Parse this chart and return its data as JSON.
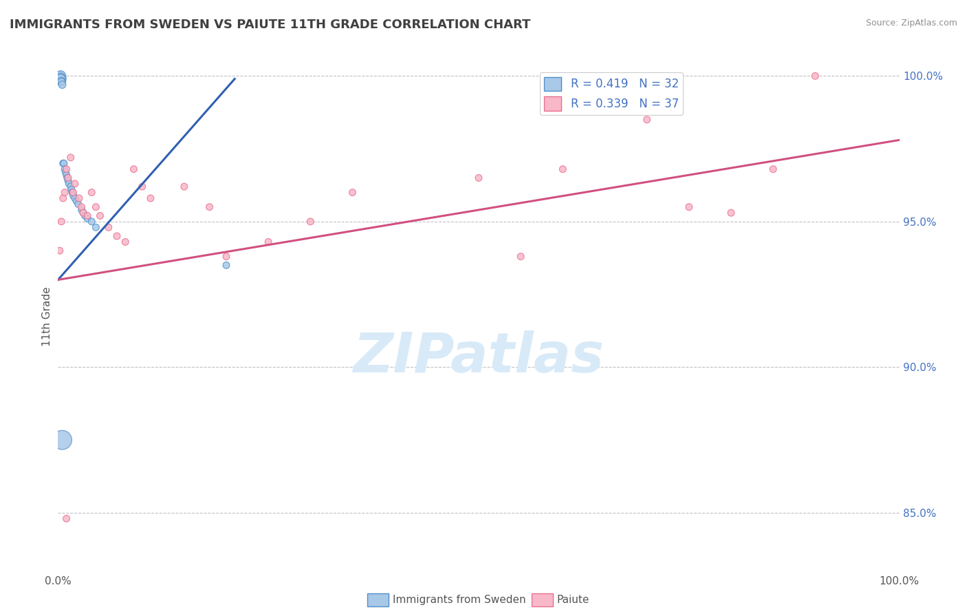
{
  "title": "IMMIGRANTS FROM SWEDEN VS PAIUTE 11TH GRADE CORRELATION CHART",
  "source_text": "Source: ZipAtlas.com",
  "ylabel": "11th Grade",
  "xlim": [
    0.0,
    1.0
  ],
  "ylim": [
    0.83,
    1.005
  ],
  "x_tick_labels": [
    "0.0%",
    "",
    "",
    "",
    "100.0%"
  ],
  "x_tick_vals": [
    0.0,
    0.25,
    0.5,
    0.75,
    1.0
  ],
  "y_tick_labels_right": [
    "85.0%",
    "90.0%",
    "95.0%",
    "100.0%"
  ],
  "y_tick_values_right": [
    0.85,
    0.9,
    0.95,
    1.0
  ],
  "legend_label_blue": "Immigrants from Sweden",
  "legend_label_pink": "Paiute",
  "R_blue": 0.419,
  "N_blue": 32,
  "R_pink": 0.339,
  "N_pink": 37,
  "blue_color": "#a8c8e8",
  "pink_color": "#f8b8c8",
  "blue_edge_color": "#5090c8",
  "pink_edge_color": "#e87090",
  "blue_line_color": "#3060b0",
  "pink_line_color": "#d05080",
  "background_color": "#ffffff",
  "grid_color": "#c0c0c8",
  "title_color": "#404040",
  "source_color": "#909090",
  "watermark_text": "ZIPatlas",
  "watermark_color": "#d8eaf8",
  "blue_scatter_x": [
    0.001,
    0.002,
    0.002,
    0.003,
    0.003,
    0.003,
    0.004,
    0.004,
    0.005,
    0.006,
    0.007,
    0.008,
    0.009,
    0.01,
    0.011,
    0.012,
    0.013,
    0.015,
    0.016,
    0.017,
    0.018,
    0.02,
    0.022,
    0.024,
    0.028,
    0.03,
    0.032,
    0.035,
    0.04,
    0.045,
    0.2,
    0.005
  ],
  "blue_scatter_y": [
    0.999,
    1.0,
    1.0,
    1.0,
    0.999,
    0.999,
    0.998,
    0.998,
    0.997,
    0.97,
    0.97,
    0.968,
    0.967,
    0.966,
    0.965,
    0.964,
    0.963,
    0.962,
    0.961,
    0.96,
    0.959,
    0.958,
    0.957,
    0.956,
    0.954,
    0.953,
    0.952,
    0.951,
    0.95,
    0.948,
    0.935,
    0.875
  ],
  "blue_scatter_sizes": [
    60,
    80,
    100,
    120,
    140,
    100,
    80,
    60,
    60,
    50,
    50,
    50,
    50,
    50,
    50,
    50,
    50,
    50,
    50,
    50,
    50,
    50,
    50,
    50,
    50,
    50,
    50,
    50,
    50,
    50,
    50,
    400
  ],
  "pink_scatter_x": [
    0.002,
    0.004,
    0.006,
    0.008,
    0.01,
    0.012,
    0.015,
    0.018,
    0.02,
    0.025,
    0.028,
    0.03,
    0.035,
    0.04,
    0.045,
    0.05,
    0.06,
    0.07,
    0.08,
    0.09,
    0.1,
    0.11,
    0.15,
    0.18,
    0.2,
    0.25,
    0.3,
    0.35,
    0.5,
    0.55,
    0.6,
    0.7,
    0.75,
    0.8,
    0.85,
    0.9,
    0.01
  ],
  "pink_scatter_y": [
    0.94,
    0.95,
    0.958,
    0.96,
    0.968,
    0.965,
    0.972,
    0.96,
    0.963,
    0.958,
    0.955,
    0.953,
    0.952,
    0.96,
    0.955,
    0.952,
    0.948,
    0.945,
    0.943,
    0.968,
    0.962,
    0.958,
    0.962,
    0.955,
    0.938,
    0.943,
    0.95,
    0.96,
    0.965,
    0.938,
    0.968,
    0.985,
    0.955,
    0.953,
    0.968,
    1.0,
    0.848
  ],
  "pink_scatter_sizes": [
    50,
    50,
    50,
    50,
    50,
    50,
    50,
    50,
    50,
    50,
    50,
    50,
    50,
    50,
    50,
    50,
    50,
    50,
    50,
    50,
    50,
    50,
    50,
    50,
    50,
    50,
    50,
    50,
    50,
    50,
    50,
    50,
    50,
    50,
    50,
    50,
    50
  ],
  "blue_trend_x": [
    0.0,
    0.21
  ],
  "blue_trend_y": [
    0.93,
    0.999
  ],
  "pink_trend_x": [
    0.0,
    1.0
  ],
  "pink_trend_y": [
    0.93,
    0.978
  ]
}
